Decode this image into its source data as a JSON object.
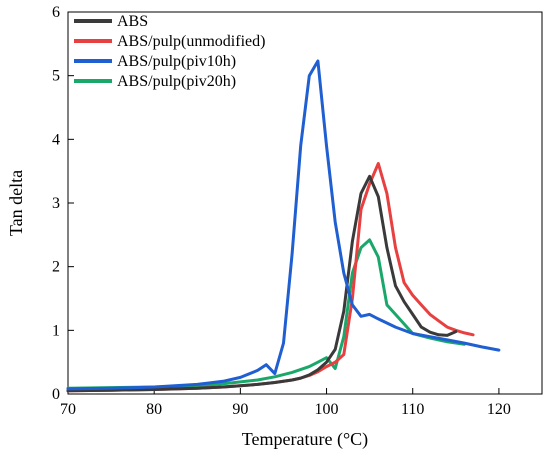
{
  "chart_data": {
    "type": "line",
    "xlabel": "Temperature (°C)",
    "ylabel": "Tan delta",
    "xlim": [
      70,
      125
    ],
    "ylim": [
      0,
      6
    ],
    "xticks": [
      70,
      80,
      90,
      100,
      110,
      120
    ],
    "yticks": [
      0,
      1,
      2,
      3,
      4,
      5,
      6
    ],
    "grid": false,
    "legend_position": "top-left",
    "series": [
      {
        "name": "ABS",
        "color": "#3a3a3a",
        "x": [
          70,
          75,
          80,
          85,
          88,
          90,
          92,
          94,
          96,
          97,
          98,
          99,
          100,
          101,
          102,
          103,
          104,
          105,
          106,
          107,
          108,
          109,
          110,
          111,
          112,
          113,
          114,
          115
        ],
        "y": [
          0.05,
          0.06,
          0.07,
          0.09,
          0.11,
          0.13,
          0.15,
          0.18,
          0.22,
          0.25,
          0.3,
          0.38,
          0.5,
          0.7,
          1.3,
          2.4,
          3.15,
          3.42,
          3.1,
          2.3,
          1.7,
          1.45,
          1.25,
          1.05,
          0.97,
          0.93,
          0.92,
          0.98
        ]
      },
      {
        "name": "ABS/pulp(unmodified)",
        "color": "#e84040",
        "x": [
          70,
          75,
          80,
          85,
          88,
          90,
          92,
          94,
          96,
          97,
          98,
          99,
          100,
          101,
          102,
          103,
          104,
          105,
          106,
          107,
          108,
          109,
          110,
          111,
          112,
          113,
          114,
          115,
          116,
          117
        ],
        "y": [
          0.05,
          0.06,
          0.07,
          0.09,
          0.11,
          0.13,
          0.15,
          0.18,
          0.22,
          0.25,
          0.29,
          0.35,
          0.43,
          0.5,
          0.62,
          1.5,
          2.9,
          3.3,
          3.62,
          3.15,
          2.3,
          1.75,
          1.55,
          1.4,
          1.25,
          1.15,
          1.05,
          1.0,
          0.96,
          0.93
        ]
      },
      {
        "name": "ABS/pulp(piv10h)",
        "color": "#1f5fd1",
        "x": [
          70,
          75,
          80,
          85,
          88,
          90,
          92,
          93,
          94,
          95,
          96,
          97,
          98,
          99,
          100,
          101,
          102,
          103,
          104,
          105,
          106,
          108,
          110,
          112,
          114,
          116,
          118,
          120
        ],
        "y": [
          0.08,
          0.09,
          0.11,
          0.15,
          0.2,
          0.26,
          0.37,
          0.46,
          0.32,
          0.8,
          2.2,
          3.9,
          5.0,
          5.23,
          3.9,
          2.7,
          1.9,
          1.4,
          1.22,
          1.25,
          1.18,
          1.05,
          0.95,
          0.9,
          0.85,
          0.8,
          0.74,
          0.69
        ]
      },
      {
        "name": "ABS/pulp(piv20h)",
        "color": "#1aa86a",
        "x": [
          70,
          75,
          80,
          85,
          88,
          90,
          92,
          94,
          96,
          98,
          99,
          100,
          101,
          102,
          103,
          104,
          105,
          106,
          107,
          108,
          110,
          112,
          114,
          116
        ],
        "y": [
          0.09,
          0.1,
          0.11,
          0.13,
          0.16,
          0.19,
          0.22,
          0.27,
          0.34,
          0.43,
          0.5,
          0.57,
          0.4,
          0.9,
          1.9,
          2.3,
          2.42,
          2.15,
          1.4,
          1.25,
          0.95,
          0.88,
          0.82,
          0.78
        ]
      }
    ]
  }
}
